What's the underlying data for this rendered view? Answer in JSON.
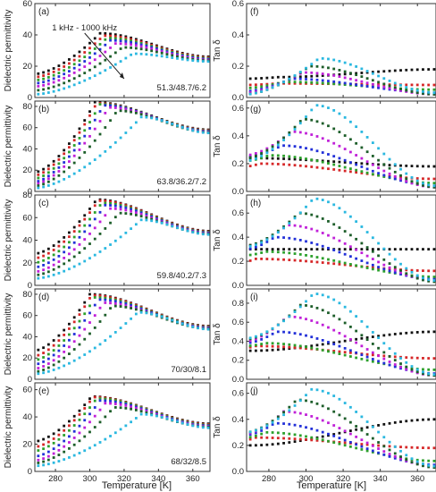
{
  "figure": {
    "x_axis_label": "Temperature [K]",
    "left_y_label": "Dielectric permittivity",
    "right_y_label": "Tan δ",
    "annotation_text": "1 kHz - 1000 kHz",
    "series_colors": [
      "#111111",
      "#d62728",
      "#2ca02c",
      "#2230d8",
      "#c020d8",
      "#1d5e2a",
      "#2ab8e0"
    ],
    "x_ticks": [
      280,
      300,
      320,
      340,
      360
    ],
    "x_range": [
      268,
      370
    ]
  },
  "chart_data": [
    {
      "panel": "(a)",
      "type": "scatter",
      "ylabel": "Dielectric permittivity",
      "composition": "51.3/48.7/6.2",
      "ylim": [
        0,
        60
      ],
      "yticks": [
        0,
        20,
        40,
        60
      ],
      "tm": [
        306,
        308,
        310,
        312,
        315,
        319,
        325
      ],
      "peak": [
        41,
        39.5,
        38,
        36.5,
        34.5,
        32,
        28
      ],
      "base": [
        15,
        13,
        11,
        9,
        7,
        4.5,
        2
      ],
      "end": [
        26,
        25.5,
        25,
        24.5,
        24,
        23.5,
        23
      ]
    },
    {
      "panel": "(b)",
      "type": "scatter",
      "ylabel": "Dielectric permittivity",
      "composition": "63.8/36.2/7.2",
      "ylim": [
        0,
        85
      ],
      "yticks": [
        0,
        20,
        40,
        60,
        80
      ],
      "tm": [
        303,
        304,
        306,
        308,
        311,
        316,
        330
      ],
      "peak": [
        84,
        83,
        82,
        81,
        79,
        76,
        70
      ],
      "base": [
        18,
        15,
        12,
        9,
        7,
        5,
        3
      ],
      "end": [
        58,
        57.5,
        57,
        56.5,
        56,
        55.5,
        55
      ]
    },
    {
      "panel": "(c)",
      "type": "scatter",
      "ylabel": "Dielectric permittivity",
      "composition": "59.8/40.2/7.3",
      "ylim": [
        0,
        80
      ],
      "yticks": [
        0,
        20,
        40,
        60,
        80
      ],
      "tm": [
        304,
        305,
        307,
        309,
        312,
        317,
        330
      ],
      "peak": [
        76,
        75,
        73,
        71,
        68,
        64,
        58
      ],
      "base": [
        28,
        24,
        20,
        16,
        12,
        9,
        6
      ],
      "end": [
        48,
        47.5,
        47,
        46.5,
        46,
        45.5,
        45
      ]
    },
    {
      "panel": "(d)",
      "type": "scatter",
      "ylabel": "Dielectric permittivity",
      "composition": "70/30/8.1",
      "ylim": [
        0,
        85
      ],
      "yticks": [
        0,
        20,
        40,
        60,
        80
      ],
      "tm": [
        300,
        301,
        303,
        305,
        308,
        313,
        328
      ],
      "peak": [
        80,
        79,
        77,
        75,
        72,
        69,
        63
      ],
      "base": [
        27,
        22,
        18,
        14,
        10,
        7,
        5
      ],
      "end": [
        50,
        49.5,
        49,
        48.5,
        48,
        47.5,
        47
      ]
    },
    {
      "panel": "(e)",
      "type": "scatter",
      "ylabel": "Dielectric permittivity",
      "composition": "68/32/8.5",
      "ylim": [
        0,
        65
      ],
      "yticks": [
        0,
        20,
        40,
        60
      ],
      "tm": [
        301,
        302,
        304,
        306,
        309,
        314,
        330
      ],
      "peak": [
        55,
        54.5,
        53.5,
        52,
        50,
        47,
        42
      ],
      "base": [
        22,
        18,
        15,
        11,
        8,
        6,
        4
      ],
      "end": [
        35,
        34.5,
        34,
        33.5,
        33,
        32.5,
        32
      ]
    },
    {
      "panel": "(f)",
      "type": "scatter",
      "ylabel": "Tan δ",
      "composition": "",
      "ylim": [
        0,
        0.6
      ],
      "yticks": [
        0.0,
        0.2,
        0.4,
        0.6
      ],
      "tm": [
        285,
        285,
        288,
        292,
        298,
        302,
        307
      ],
      "peak": [
        0.13,
        0.09,
        0.1,
        0.12,
        0.16,
        0.2,
        0.25
      ],
      "base": [
        0.12,
        0.08,
        0.06,
        0.04,
        0.03,
        0.02,
        0.02
      ],
      "end": [
        0.18,
        0.08,
        0.05,
        0.03,
        0.02,
        0.02,
        0.03
      ]
    },
    {
      "panel": "(g)",
      "type": "scatter",
      "ylabel": "Tan δ",
      "composition": "",
      "ylim": [
        0,
        0.65
      ],
      "yticks": [
        0.0,
        0.2,
        0.4,
        0.6
      ],
      "tm": [
        270,
        275,
        280,
        287,
        292,
        298,
        305
      ],
      "peak": [
        0.24,
        0.2,
        0.26,
        0.33,
        0.43,
        0.52,
        0.62
      ],
      "base": [
        0.24,
        0.18,
        0.22,
        0.25,
        0.26,
        0.24,
        0.22
      ],
      "end": [
        0.18,
        0.09,
        0.06,
        0.04,
        0.03,
        0.03,
        0.04
      ]
    },
    {
      "panel": "(h)",
      "type": "scatter",
      "ylabel": "Tan δ",
      "composition": "",
      "ylim": [
        0,
        0.75
      ],
      "yticks": [
        0.0,
        0.2,
        0.4,
        0.6
      ],
      "tm": [
        270,
        273,
        278,
        283,
        290,
        296,
        304
      ],
      "peak": [
        0.3,
        0.22,
        0.28,
        0.4,
        0.5,
        0.6,
        0.72
      ],
      "base": [
        0.3,
        0.2,
        0.25,
        0.3,
        0.33,
        0.33,
        0.32
      ],
      "end": [
        0.3,
        0.12,
        0.07,
        0.05,
        0.04,
        0.03,
        0.04
      ]
    },
    {
      "panel": "(i)",
      "type": "scatter",
      "ylabel": "Tan δ",
      "composition": "",
      "ylim": [
        0,
        0.95
      ],
      "yticks": [
        0.0,
        0.2,
        0.4,
        0.6,
        0.8
      ],
      "tm": [
        270,
        272,
        278,
        284,
        290,
        297,
        304
      ],
      "peak": [
        0.3,
        0.35,
        0.38,
        0.5,
        0.66,
        0.78,
        0.9
      ],
      "base": [
        0.3,
        0.33,
        0.35,
        0.38,
        0.4,
        0.42,
        0.43
      ],
      "end": [
        0.5,
        0.22,
        0.1,
        0.06,
        0.04,
        0.04,
        0.05
      ]
    },
    {
      "panel": "(j)",
      "type": "scatter",
      "ylabel": "Tan δ",
      "composition": "",
      "ylim": [
        0,
        0.68
      ],
      "yticks": [
        0.0,
        0.2,
        0.4,
        0.6
      ],
      "tm": [
        270,
        272,
        278,
        283,
        288,
        295,
        303
      ],
      "peak": [
        0.2,
        0.26,
        0.3,
        0.37,
        0.46,
        0.55,
        0.63
      ],
      "base": [
        0.2,
        0.24,
        0.26,
        0.28,
        0.29,
        0.3,
        0.3
      ],
      "end": [
        0.4,
        0.18,
        0.08,
        0.05,
        0.04,
        0.03,
        0.04
      ]
    }
  ]
}
